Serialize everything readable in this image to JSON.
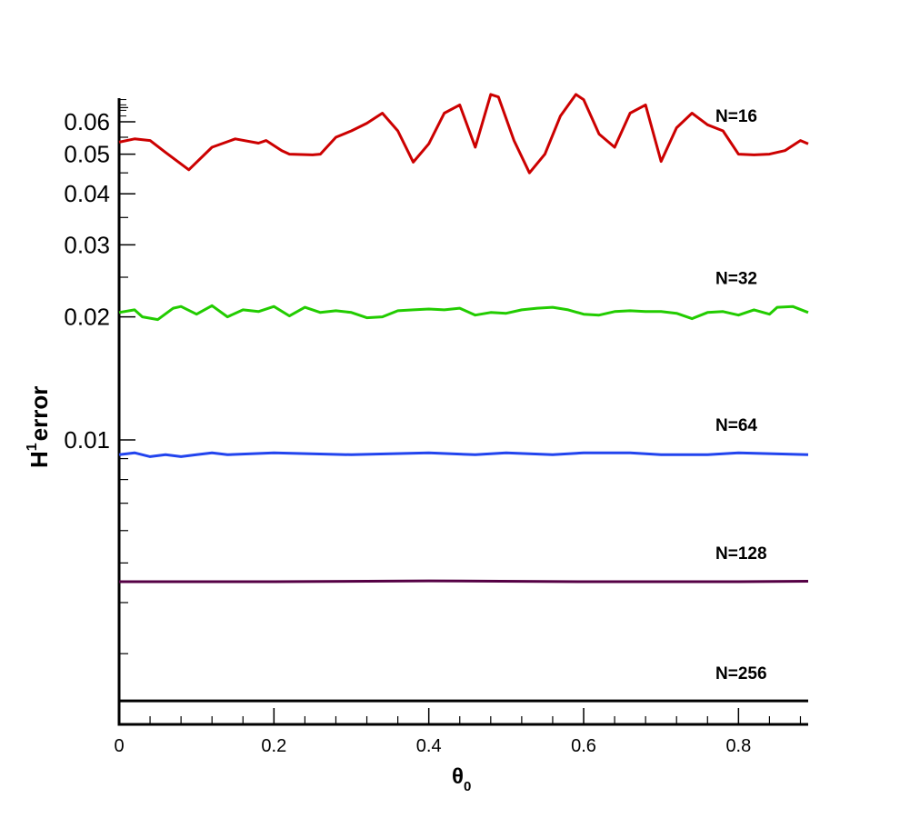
{
  "chart_data": {
    "type": "line",
    "xlabel": {
      "main": "θ",
      "sub": "0"
    },
    "ylabel": {
      "main": "H",
      "sup": "1",
      "rest": "error"
    },
    "x_range": [
      0,
      0.89
    ],
    "y_scale": "log",
    "grid": false,
    "legend": "none",
    "x_ticks": [
      {
        "value": 0,
        "label": "0"
      },
      {
        "value": 0.2,
        "label": "0.2"
      },
      {
        "value": 0.4,
        "label": "0.4"
      },
      {
        "value": 0.6,
        "label": "0.6"
      },
      {
        "value": 0.8,
        "label": "0.8"
      }
    ],
    "y_ticks": [
      {
        "value": 0.06,
        "label": "0.06"
      },
      {
        "value": 0.05,
        "label": "0.05"
      },
      {
        "value": 0.04,
        "label": "0.04"
      },
      {
        "value": 0.03,
        "label": "0.03"
      },
      {
        "value": 0.02,
        "label": "0.02"
      },
      {
        "value": 0.01,
        "label": "0.01"
      }
    ],
    "series": [
      {
        "name": "N=16",
        "color": "#cc0000",
        "x": [
          0,
          0.02,
          0.04,
          0.06,
          0.09,
          0.12,
          0.15,
          0.18,
          0.19,
          0.21,
          0.22,
          0.25,
          0.26,
          0.28,
          0.3,
          0.32,
          0.34,
          0.36,
          0.38,
          0.4,
          0.42,
          0.44,
          0.46,
          0.48,
          0.49,
          0.51,
          0.53,
          0.55,
          0.57,
          0.59,
          0.6,
          0.62,
          0.64,
          0.66,
          0.68,
          0.7,
          0.72,
          0.74,
          0.76,
          0.78,
          0.8,
          0.82,
          0.84,
          0.86,
          0.88,
          0.89
        ],
        "y": [
          0.0535,
          0.0545,
          0.054,
          0.0505,
          0.0458,
          0.052,
          0.0545,
          0.0532,
          0.054,
          0.051,
          0.05,
          0.0498,
          0.05,
          0.055,
          0.057,
          0.0595,
          0.063,
          0.057,
          0.0478,
          0.053,
          0.063,
          0.066,
          0.052,
          0.07,
          0.069,
          0.054,
          0.045,
          0.05,
          0.062,
          0.07,
          0.068,
          0.056,
          0.052,
          0.063,
          0.066,
          0.048,
          0.058,
          0.063,
          0.059,
          0.057,
          0.05,
          0.0498,
          0.05,
          0.051,
          0.054,
          0.053
        ]
      },
      {
        "name": "N=32",
        "color": "#22cc00",
        "x": [
          0,
          0.02,
          0.03,
          0.05,
          0.07,
          0.08,
          0.1,
          0.12,
          0.14,
          0.16,
          0.18,
          0.2,
          0.22,
          0.24,
          0.26,
          0.28,
          0.3,
          0.32,
          0.34,
          0.36,
          0.38,
          0.4,
          0.42,
          0.44,
          0.46,
          0.48,
          0.5,
          0.52,
          0.54,
          0.56,
          0.58,
          0.6,
          0.62,
          0.64,
          0.66,
          0.68,
          0.7,
          0.72,
          0.74,
          0.76,
          0.78,
          0.8,
          0.82,
          0.84,
          0.85,
          0.87,
          0.89
        ],
        "y": [
          0.0205,
          0.0208,
          0.02,
          0.0197,
          0.021,
          0.0212,
          0.0203,
          0.0213,
          0.02,
          0.0208,
          0.0206,
          0.0212,
          0.0201,
          0.0211,
          0.0205,
          0.0207,
          0.0205,
          0.0199,
          0.02,
          0.0207,
          0.0208,
          0.0209,
          0.0208,
          0.021,
          0.0202,
          0.0205,
          0.0204,
          0.0208,
          0.021,
          0.0211,
          0.0208,
          0.0203,
          0.0202,
          0.0206,
          0.0207,
          0.0206,
          0.0206,
          0.0204,
          0.0198,
          0.0205,
          0.0206,
          0.0202,
          0.0208,
          0.0203,
          0.0211,
          0.0212,
          0.0205
        ]
      },
      {
        "name": "N=64",
        "color": "#2244ee",
        "x": [
          0,
          0.02,
          0.04,
          0.06,
          0.08,
          0.1,
          0.12,
          0.14,
          0.2,
          0.3,
          0.4,
          0.46,
          0.5,
          0.56,
          0.6,
          0.66,
          0.7,
          0.76,
          0.8,
          0.89
        ],
        "y": [
          0.0092,
          0.0093,
          0.0091,
          0.0092,
          0.0091,
          0.0092,
          0.0093,
          0.0092,
          0.0093,
          0.0092,
          0.0093,
          0.0092,
          0.0093,
          0.0092,
          0.0093,
          0.0093,
          0.0092,
          0.0092,
          0.0093,
          0.0092
        ]
      },
      {
        "name": "N=128",
        "color": "#550044",
        "x": [
          0,
          0.2,
          0.4,
          0.6,
          0.8,
          0.89
        ],
        "y": [
          0.0045,
          0.0045,
          0.00452,
          0.0045,
          0.0045,
          0.00451
        ]
      },
      {
        "name": "N=256",
        "color": "#000000",
        "x": [
          0,
          0.2,
          0.4,
          0.6,
          0.8,
          0.89
        ],
        "y": [
          0.0023,
          0.0023,
          0.0023,
          0.0023,
          0.0023,
          0.0023
        ]
      }
    ]
  }
}
